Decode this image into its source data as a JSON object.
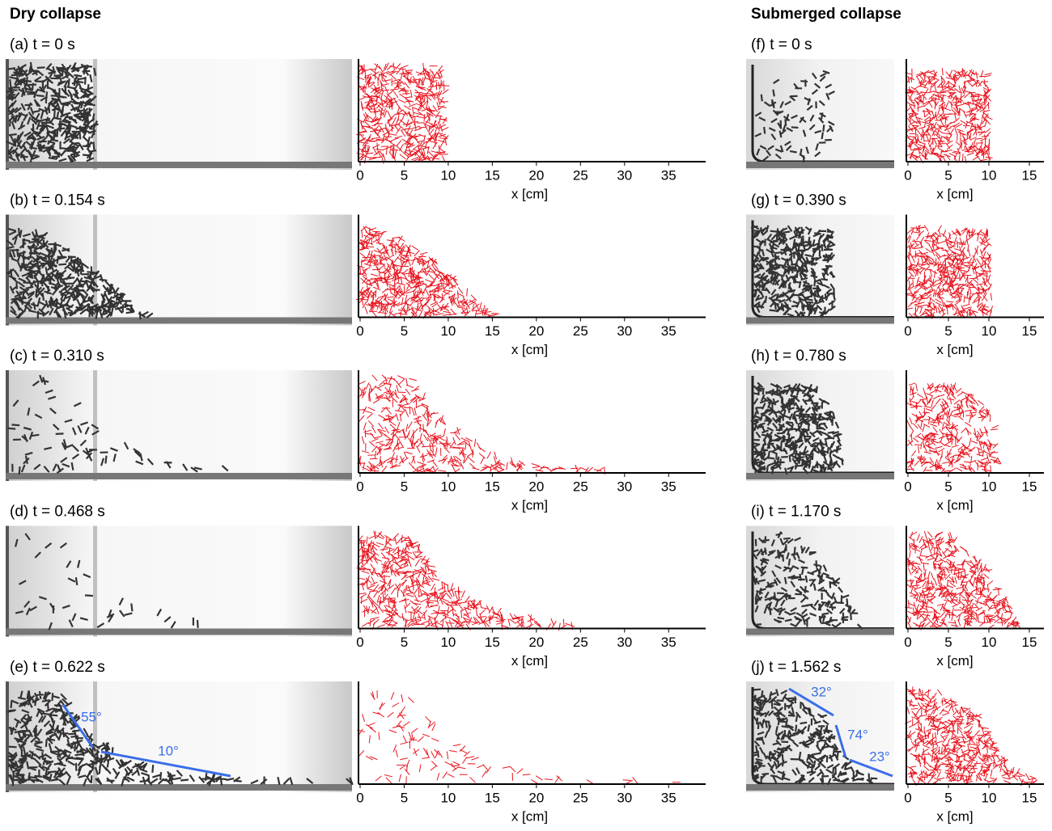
{
  "header": {
    "left_title": "Dry collapse",
    "right_title": "Submerged collapse"
  },
  "dry_panels": [
    {
      "label": "(a) t = 0 s"
    },
    {
      "label": "(b) t = 0.154 s"
    },
    {
      "label": "(c) t = 0.310 s"
    },
    {
      "label": "(d) t = 0.468 s"
    },
    {
      "label": "(e) t = 0.622 s"
    }
  ],
  "submerged_panels": [
    {
      "label": "(f) t = 0 s"
    },
    {
      "label": "(g) t = 0.390 s"
    },
    {
      "label": "(h) t = 0.780 s"
    },
    {
      "label": "(i) t = 1.170 s"
    },
    {
      "label": "(j) t = 1.562 s"
    }
  ],
  "dry_axis": {
    "xlabel": "x [cm]",
    "xlim": [
      0,
      39.2
    ],
    "xticks": [
      0,
      5,
      10,
      15,
      20,
      25,
      30,
      35
    ]
  },
  "submerged_axis": {
    "xlabel": "x [cm]",
    "xlim": [
      0,
      16.8
    ],
    "xticks": [
      0,
      5,
      10,
      15
    ]
  },
  "annotations": {
    "dry": [
      "55°",
      "10°"
    ],
    "submerged": [
      "32°",
      "74°",
      "23°"
    ]
  }
}
